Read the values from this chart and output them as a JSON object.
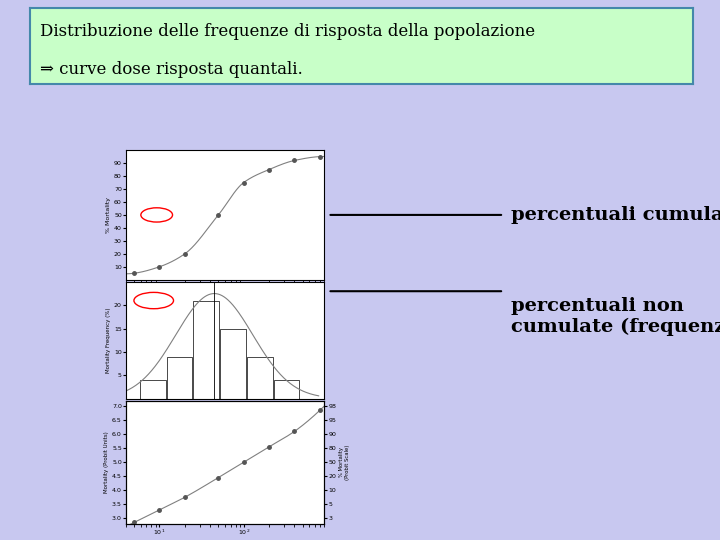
{
  "bg_color": "#c8c8f0",
  "title_box_color": "#c8ffc8",
  "title_border_color": "#4488aa",
  "title_line1": "Distribuzione delle frequenze di risposta della popolazione",
  "title_line2": "⇒ curve dose risposta quantali.",
  "title_fontsize": 12,
  "label1_text": "percentuali cumulate",
  "label2_text": "percentuali non\ncumulate (frequenze)",
  "label_fontsize": 14,
  "sigmoid_x": [
    5,
    10,
    20,
    50,
    100,
    200,
    400,
    800
  ],
  "sigmoid_y": [
    5,
    10,
    20,
    50,
    75,
    85,
    92,
    95
  ],
  "hist_bars_h": [
    4,
    9,
    21,
    15,
    9,
    4
  ],
  "probit_x": [
    5,
    10,
    20,
    50,
    100,
    200,
    400,
    800
  ],
  "probit_y": [
    2.85,
    3.3,
    3.75,
    4.45,
    5.0,
    5.55,
    6.1,
    6.85
  ]
}
